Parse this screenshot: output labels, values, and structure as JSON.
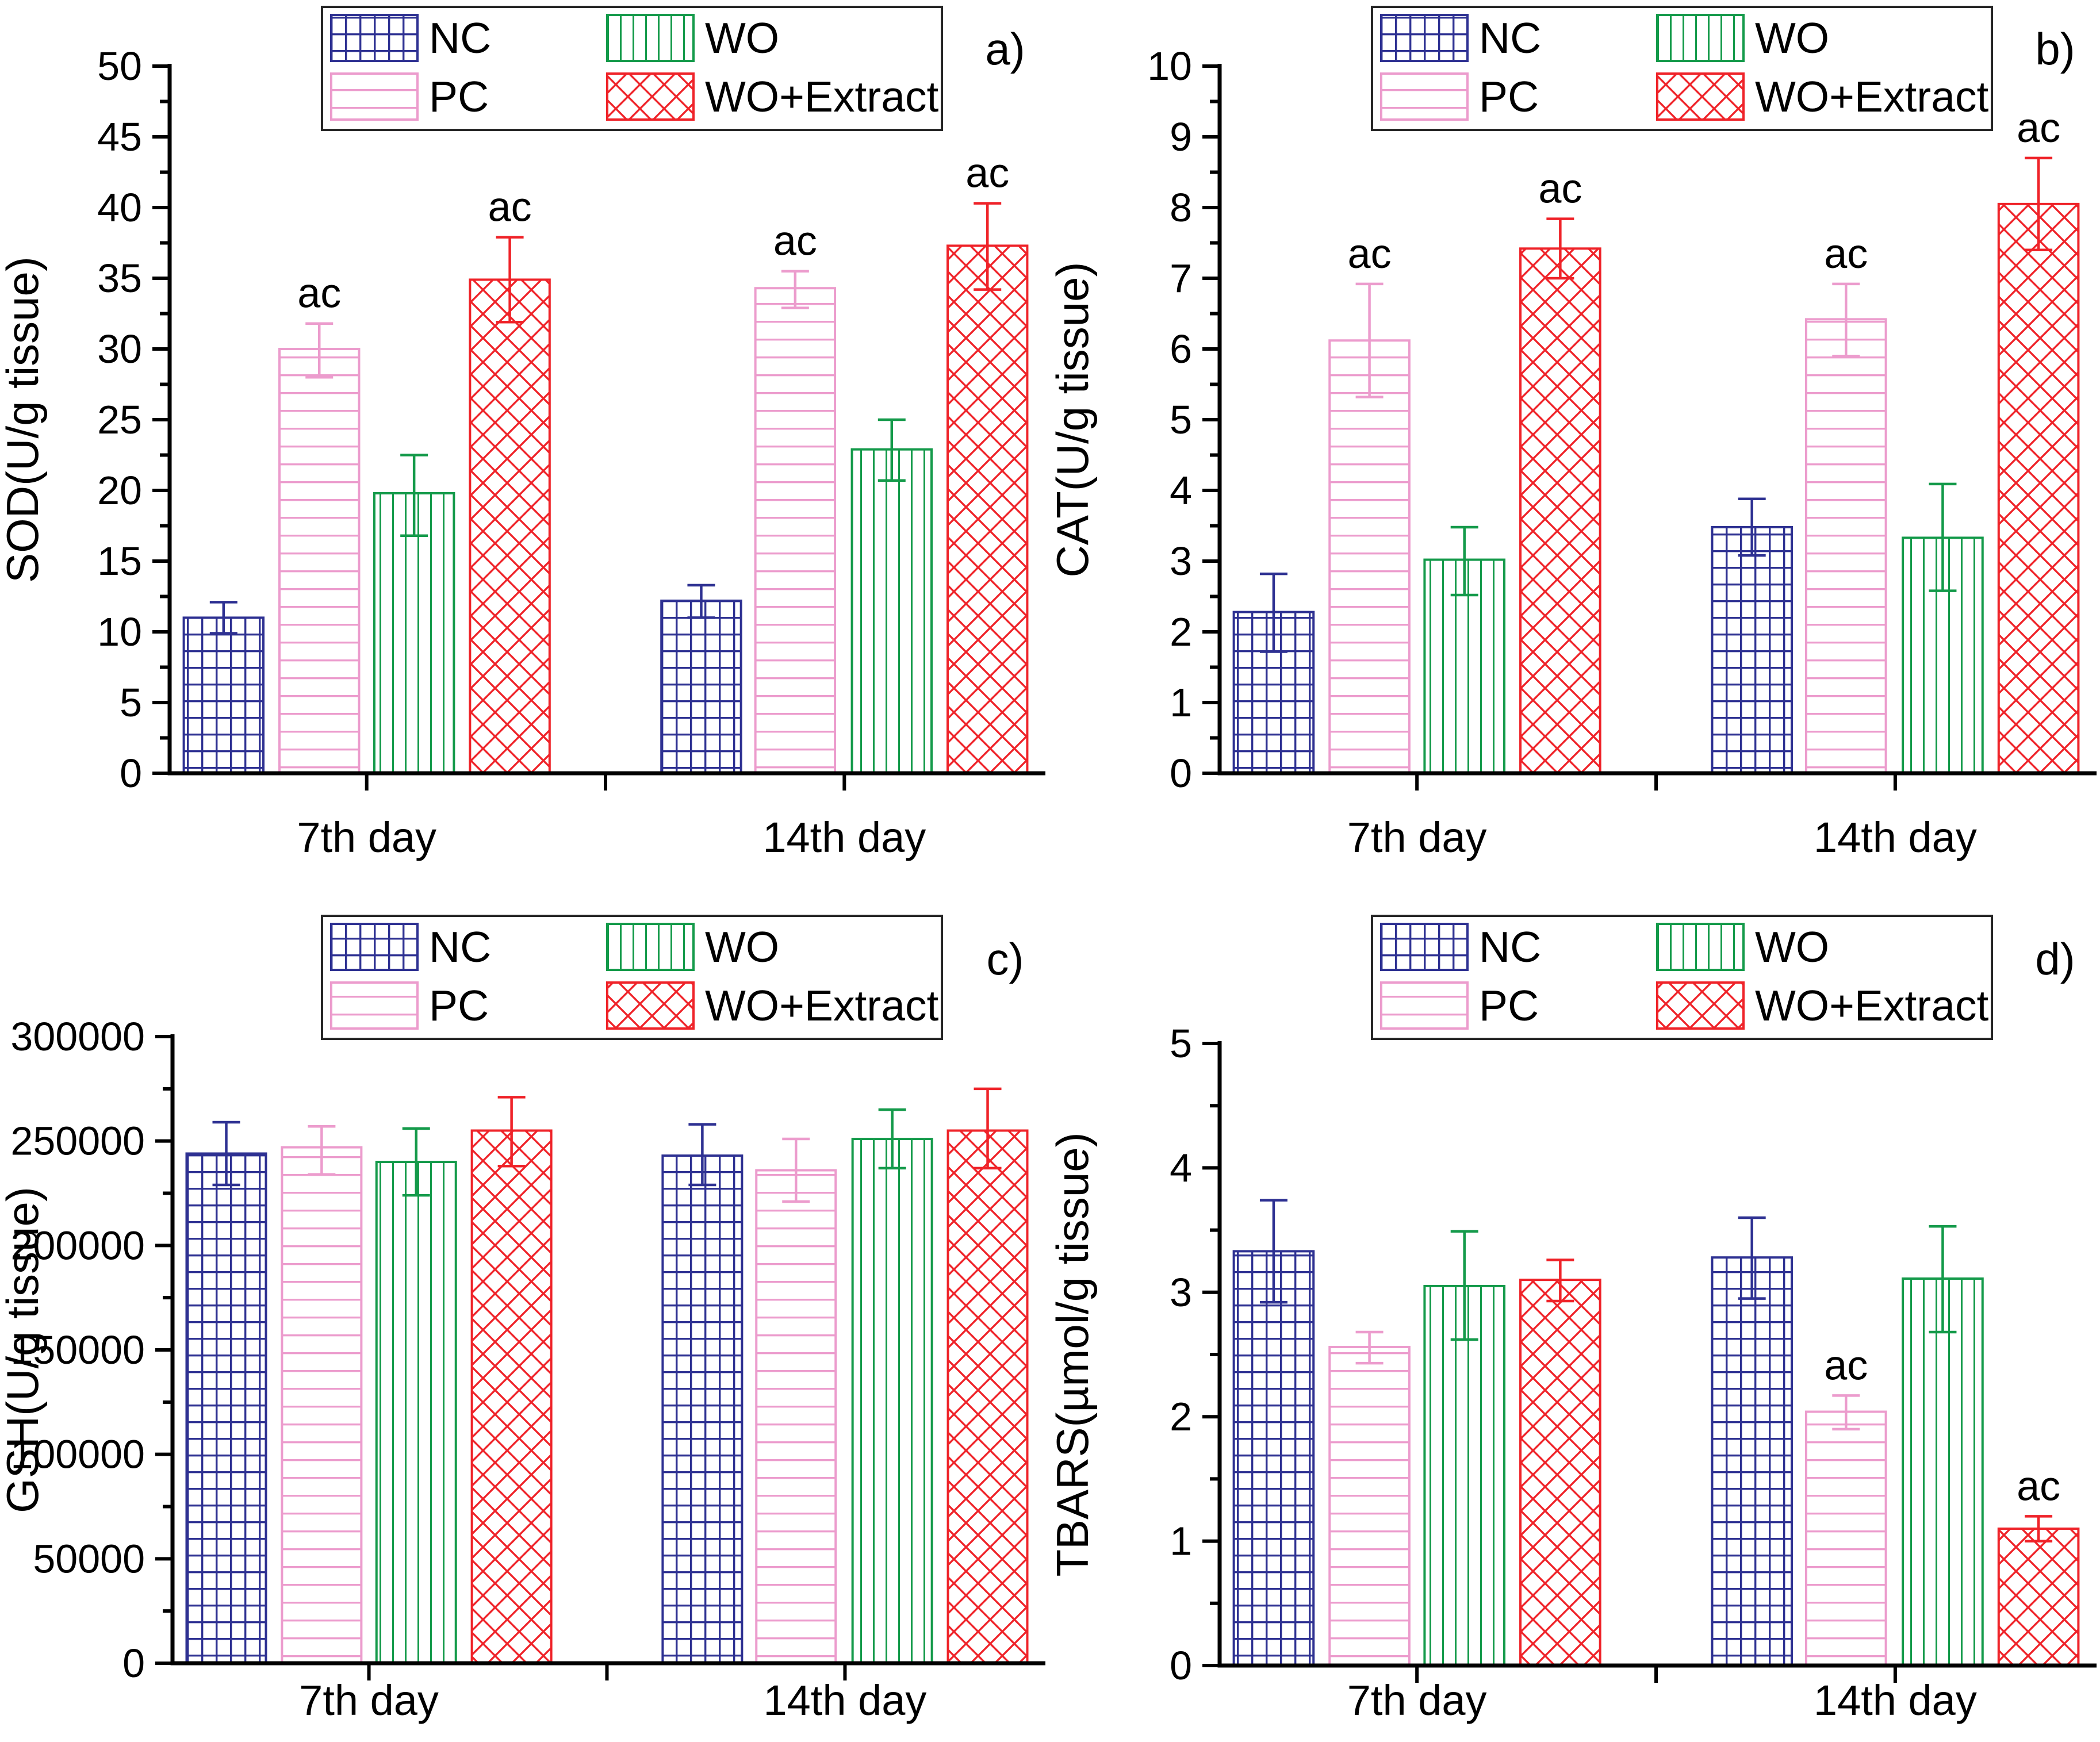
{
  "figure": {
    "description": "Four-panel antioxidant / oxidative stress bar figure",
    "x_categories": [
      "7th day",
      "14th day"
    ],
    "legend_labels": [
      "NC",
      "PC",
      "WO",
      "WO+Extract"
    ],
    "colors": {
      "NC": "#2e3192",
      "PC": "#ec9ccd",
      "WO": "#149a4a",
      "WO+Extract": "#ef2329",
      "axis": "#000000"
    }
  },
  "chart_data": [
    {
      "type": "bar",
      "panel_label": "a)",
      "ylabel": "SOD(U/g tissue)",
      "xlabel": "",
      "ylim": [
        0,
        50
      ],
      "ytick_major": 5,
      "ytick_minor": 2.5,
      "grid": false,
      "legend_position": "top-center",
      "categories": [
        "7th day",
        "14th day"
      ],
      "series": [
        {
          "name": "NC",
          "color": "#2e3192",
          "pattern": "grid",
          "values": [
            11.0,
            12.2
          ],
          "err_up": [
            1.1,
            1.1
          ],
          "err_down": [
            1.1,
            1.2
          ],
          "sig": [
            "",
            ""
          ]
        },
        {
          "name": "PC",
          "color": "#ec9ccd",
          "pattern": "hlines",
          "values": [
            30.0,
            34.3
          ],
          "err_up": [
            1.8,
            1.2
          ],
          "err_down": [
            2.0,
            1.4
          ],
          "sig": [
            "ac",
            "ac"
          ]
        },
        {
          "name": "WO",
          "color": "#149a4a",
          "pattern": "vlines",
          "values": [
            19.8,
            22.9
          ],
          "err_up": [
            2.7,
            2.1
          ],
          "err_down": [
            3.0,
            2.2
          ],
          "sig": [
            "",
            ""
          ]
        },
        {
          "name": "WO+Extract",
          "color": "#ef2329",
          "pattern": "crosshatch",
          "values": [
            34.9,
            37.3
          ],
          "err_up": [
            3.0,
            3.0
          ],
          "err_down": [
            3.0,
            3.1
          ],
          "sig": [
            "ac",
            "ac"
          ]
        }
      ]
    },
    {
      "type": "bar",
      "panel_label": "b)",
      "ylabel": "CAT(U/g tissue)",
      "xlabel": "",
      "ylim": [
        0,
        10
      ],
      "ytick_major": 1,
      "ytick_minor": 0.5,
      "grid": false,
      "legend_position": "top-center",
      "categories": [
        "7th day",
        "14th day"
      ],
      "series": [
        {
          "name": "NC",
          "color": "#2e3192",
          "pattern": "grid",
          "values": [
            2.28,
            3.48
          ],
          "err_up": [
            0.54,
            0.4
          ],
          "err_down": [
            0.56,
            0.4
          ],
          "sig": [
            "",
            ""
          ]
        },
        {
          "name": "PC",
          "color": "#ec9ccd",
          "pattern": "hlines",
          "values": [
            6.12,
            6.42
          ],
          "err_up": [
            0.8,
            0.5
          ],
          "err_down": [
            0.8,
            0.52
          ],
          "sig": [
            "ac",
            "ac"
          ]
        },
        {
          "name": "WO",
          "color": "#149a4a",
          "pattern": "vlines",
          "values": [
            3.02,
            3.33
          ],
          "err_up": [
            0.46,
            0.76
          ],
          "err_down": [
            0.5,
            0.75
          ],
          "sig": [
            "",
            ""
          ]
        },
        {
          "name": "WO+Extract",
          "color": "#ef2329",
          "pattern": "crosshatch",
          "values": [
            7.42,
            8.05
          ],
          "err_up": [
            0.42,
            0.65
          ],
          "err_down": [
            0.42,
            0.65
          ],
          "sig": [
            "ac",
            "ac"
          ]
        }
      ]
    },
    {
      "type": "bar",
      "panel_label": "c)",
      "ylabel": "GSH(U/g tissue)",
      "xlabel": "",
      "ylim": [
        0,
        300000
      ],
      "ytick_major": 50000,
      "ytick_minor": 25000,
      "grid": false,
      "legend_position": "top-center",
      "categories": [
        "7th day",
        "14th day"
      ],
      "series": [
        {
          "name": "NC",
          "color": "#2e3192",
          "pattern": "grid",
          "values": [
            244000,
            243000
          ],
          "err_up": [
            15000,
            15000
          ],
          "err_down": [
            15000,
            14000
          ],
          "sig": [
            "",
            ""
          ]
        },
        {
          "name": "PC",
          "color": "#ec9ccd",
          "pattern": "hlines",
          "values": [
            247000,
            236000
          ],
          "err_up": [
            10000,
            15000
          ],
          "err_down": [
            13000,
            15000
          ],
          "sig": [
            "",
            ""
          ]
        },
        {
          "name": "WO",
          "color": "#149a4a",
          "pattern": "vlines",
          "values": [
            240000,
            251000
          ],
          "err_up": [
            16000,
            14000
          ],
          "err_down": [
            16000,
            14000
          ],
          "sig": [
            "",
            ""
          ]
        },
        {
          "name": "WO+Extract",
          "color": "#ef2329",
          "pattern": "crosshatch",
          "values": [
            255000,
            255000
          ],
          "err_up": [
            16000,
            20000
          ],
          "err_down": [
            17000,
            18000
          ],
          "sig": [
            "",
            ""
          ]
        }
      ]
    },
    {
      "type": "bar",
      "panel_label": "d)",
      "ylabel": "TBARS(µmol/g tissue)",
      "xlabel": "",
      "ylim": [
        0,
        5
      ],
      "ytick_major": 1,
      "ytick_minor": 0.5,
      "grid": false,
      "legend_position": "top-center",
      "categories": [
        "7th day",
        "14th day"
      ],
      "series": [
        {
          "name": "NC",
          "color": "#2e3192",
          "pattern": "grid",
          "values": [
            3.33,
            3.28
          ],
          "err_up": [
            0.41,
            0.32
          ],
          "err_down": [
            0.41,
            0.33
          ],
          "sig": [
            "",
            ""
          ]
        },
        {
          "name": "PC",
          "color": "#ec9ccd",
          "pattern": "hlines",
          "values": [
            2.56,
            2.04
          ],
          "err_up": [
            0.12,
            0.13
          ],
          "err_down": [
            0.13,
            0.14
          ],
          "sig": [
            "",
            "ac"
          ]
        },
        {
          "name": "WO",
          "color": "#149a4a",
          "pattern": "vlines",
          "values": [
            3.05,
            3.11
          ],
          "err_up": [
            0.44,
            0.42
          ],
          "err_down": [
            0.43,
            0.43
          ],
          "sig": [
            "",
            ""
          ]
        },
        {
          "name": "WO+Extract",
          "color": "#ef2329",
          "pattern": "crosshatch",
          "values": [
            3.1,
            1.1
          ],
          "err_up": [
            0.16,
            0.1
          ],
          "err_down": [
            0.17,
            0.1
          ],
          "sig": [
            "",
            "ac"
          ]
        }
      ]
    }
  ]
}
